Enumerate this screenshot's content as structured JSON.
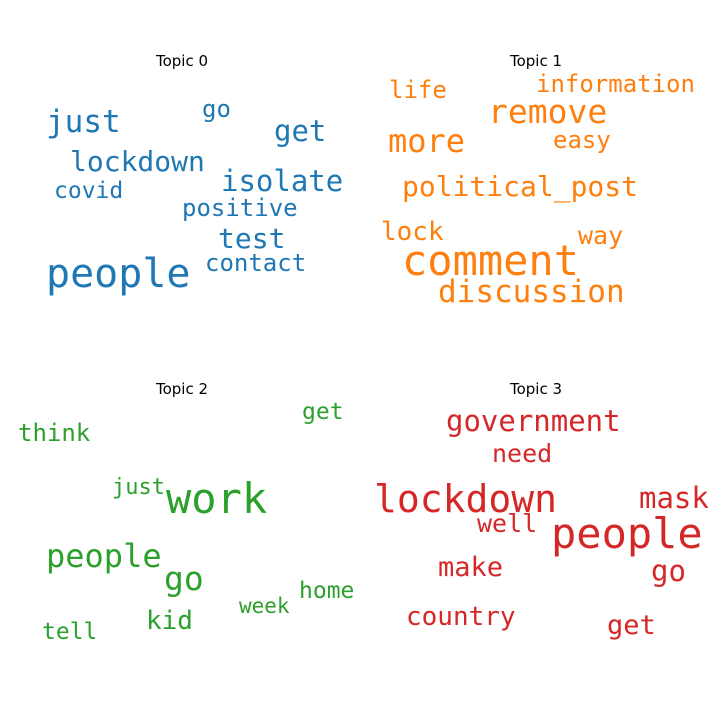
{
  "chart_data": {
    "type": "wordcloud",
    "panels": [
      {
        "title": "Topic 0",
        "color": "#1f77b4",
        "words": [
          "people",
          "isolate",
          "lockdown",
          "get",
          "just",
          "test",
          "positive",
          "covid",
          "contact",
          "go"
        ]
      },
      {
        "title": "Topic 1",
        "color": "#ff7f0e",
        "words": [
          "comment",
          "remove",
          "discussion",
          "political_post",
          "more",
          "information",
          "life",
          "easy",
          "lock",
          "way"
        ]
      },
      {
        "title": "Topic 2",
        "color": "#2ca02c",
        "words": [
          "work",
          "people",
          "go",
          "kid",
          "think",
          "get",
          "home",
          "week",
          "tell",
          "just"
        ]
      },
      {
        "title": "Topic 3",
        "color": "#d62728",
        "words": [
          "people",
          "lockdown",
          "government",
          "mask",
          "go",
          "get",
          "make",
          "country",
          "need",
          "well"
        ]
      }
    ]
  }
}
